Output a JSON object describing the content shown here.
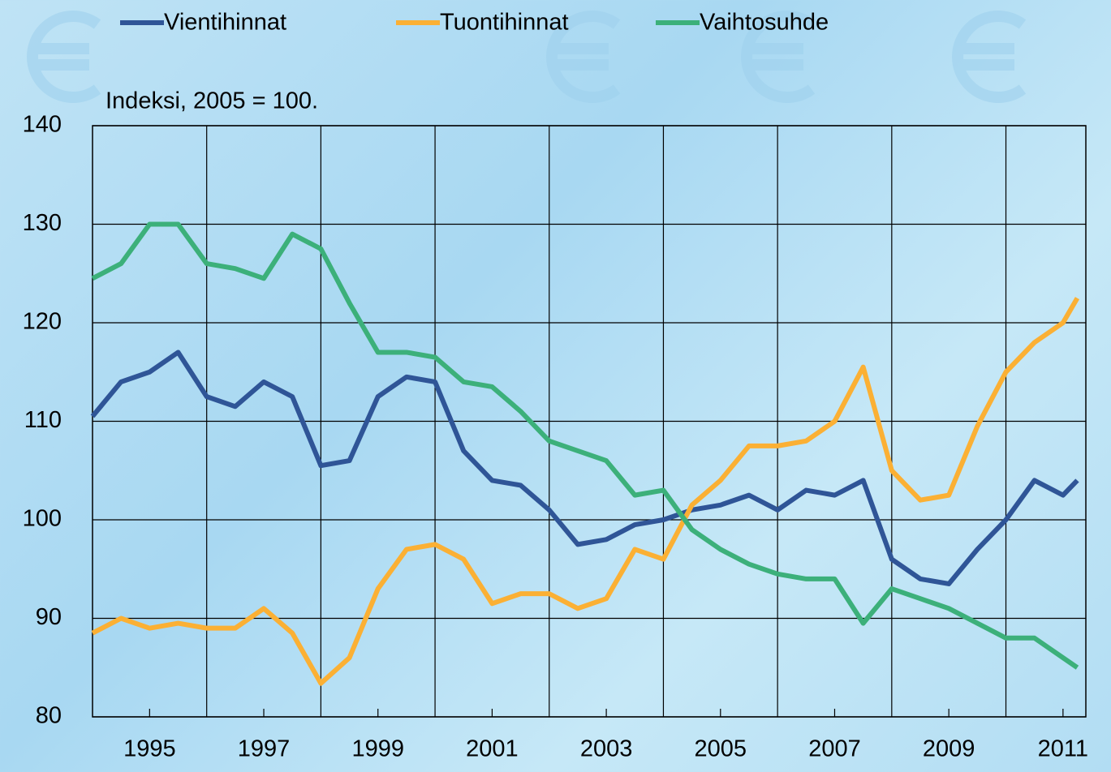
{
  "chart_data": {
    "type": "line",
    "subtitle": "Indeksi, 2005 = 100.",
    "x": [
      1994,
      1994.5,
      1995,
      1995.5,
      1996,
      1996.5,
      1997,
      1997.5,
      1998,
      1998.5,
      1999,
      1999.5,
      2000,
      2000.5,
      2001,
      2001.5,
      2002,
      2002.5,
      2003,
      2003.5,
      2004,
      2004.5,
      2005,
      2005.5,
      2006,
      2006.5,
      2007,
      2007.5,
      2008,
      2008.5,
      2009,
      2009.5,
      2010,
      2010.5,
      2011,
      2011.25
    ],
    "series": [
      {
        "name": "Vientihinnat",
        "color": "#2f5597",
        "values": [
          110.5,
          114,
          115,
          117,
          112.5,
          111.5,
          114,
          112.5,
          105.5,
          106,
          112.5,
          114.5,
          114,
          107,
          104,
          103.5,
          101,
          97.5,
          98,
          99.5,
          100,
          101,
          101.5,
          102.5,
          101,
          103,
          102.5,
          104,
          96,
          94,
          93.5,
          97,
          100,
          104,
          102.5,
          104
        ]
      },
      {
        "name": "Tuontihinnat",
        "color": "#fbb034",
        "values": [
          88.5,
          90,
          89,
          89.5,
          89,
          89,
          91,
          88.5,
          83.4,
          86,
          93,
          97,
          97.5,
          96,
          91.5,
          92.5,
          92.5,
          91,
          92,
          97,
          96,
          101.5,
          104,
          107.5,
          107.5,
          108,
          110,
          115.5,
          105,
          102,
          102.5,
          109.5,
          115,
          118,
          120,
          122.5
        ]
      },
      {
        "name": "Vaihtosuhde",
        "color": "#3cb07a",
        "values": [
          124.5,
          126,
          130,
          130,
          126,
          125.5,
          124.5,
          129,
          127.5,
          122,
          117,
          117,
          116.5,
          114,
          113.5,
          111,
          108,
          107,
          106,
          102.5,
          103,
          99,
          97,
          95.5,
          94.5,
          94,
          94,
          89.5,
          93,
          92,
          91,
          89.5,
          88,
          88,
          86,
          85
        ]
      }
    ],
    "xlim": [
      1994,
      2011.4
    ],
    "xticks": [
      1995,
      1997,
      1999,
      2001,
      2003,
      2005,
      2007,
      2009,
      2011
    ],
    "xgrid": [
      1996,
      1998,
      2000,
      2002,
      2004,
      2006,
      2008,
      2010
    ],
    "ylim": [
      80,
      140
    ],
    "yticks": [
      80,
      90,
      100,
      110,
      120,
      130,
      140
    ],
    "grid": true
  }
}
